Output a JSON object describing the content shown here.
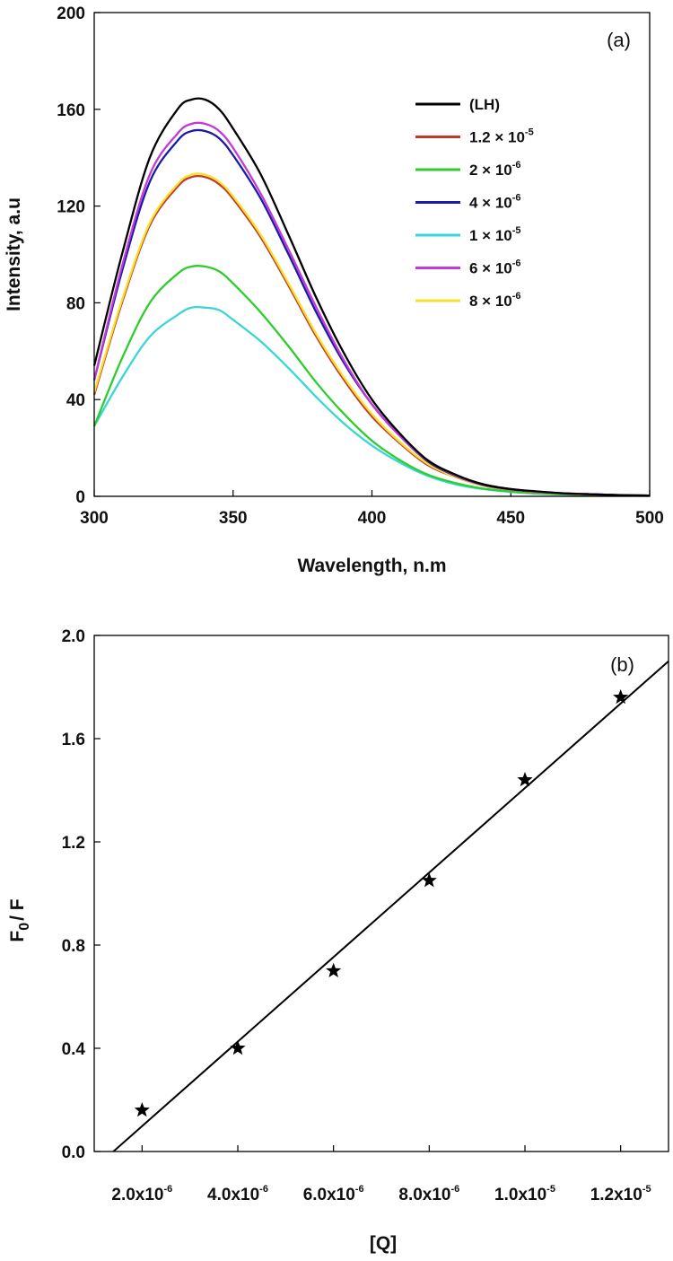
{
  "chart_data": [
    {
      "type": "line",
      "panel_label": "(a)",
      "xlabel": "Wavelength, n.m",
      "ylabel": "Intensity, a.u",
      "xlim": [
        300,
        500
      ],
      "ylim": [
        0,
        200
      ],
      "xticks": [
        300,
        350,
        400,
        450,
        500
      ],
      "xtick_labels": [
        "300",
        "350",
        "400",
        "450",
        "500"
      ],
      "yticks": [
        0,
        40,
        80,
        120,
        160,
        200
      ],
      "ytick_labels": [
        "0",
        "40",
        "80",
        "120",
        "160",
        "200"
      ],
      "legend_position": "top-right",
      "x": [
        300,
        310,
        320,
        330,
        335,
        340,
        345,
        350,
        360,
        370,
        380,
        390,
        400,
        410,
        420,
        430,
        440,
        450,
        460,
        470,
        480,
        490,
        500
      ],
      "series": [
        {
          "name": "(LH)",
          "legend_base": "(LH)",
          "legend_exp": "",
          "color": "#000000",
          "values": [
            54,
            100,
            140,
            160,
            164,
            164,
            160,
            152,
            133,
            108,
            82,
            59,
            40,
            26,
            15,
            9,
            5,
            3,
            2,
            1.2,
            0.8,
            0.5,
            0.3
          ]
        },
        {
          "name": "1.2 × 10-5",
          "legend_base": "1.2 × 10",
          "legend_exp": "-5",
          "color": "#c0392b",
          "values": [
            42,
            80,
            112,
            128,
            132,
            132,
            129,
            123,
            107,
            87,
            66,
            48,
            33,
            22,
            13,
            8,
            4.5,
            2.7,
            1.7,
            1.1,
            0.7,
            0.5,
            0.3
          ]
        },
        {
          "name": "2 × 10-6",
          "legend_base": "2 × 10",
          "legend_exp": "-6",
          "color": "#2ecc2e",
          "values": [
            29,
            57,
            80,
            92,
            95,
            95,
            93,
            88,
            76,
            62,
            47,
            34,
            23,
            15,
            9,
            5.5,
            3.2,
            2,
            1.2,
            0.8,
            0.5,
            0.3,
            0.2
          ]
        },
        {
          "name": "4 × 10-6",
          "legend_base": "4 × 10",
          "legend_exp": "-6",
          "color": "#1a1aa6",
          "values": [
            48,
            93,
            130,
            147,
            151,
            151,
            148,
            141,
            123,
            100,
            76,
            55,
            38,
            25,
            14.5,
            8.5,
            4.8,
            2.9,
            1.8,
            1.2,
            0.8,
            0.5,
            0.3
          ]
        },
        {
          "name": "1 × 10-5",
          "legend_base": "1 × 10",
          "legend_exp": "-5",
          "color": "#3ad6d6",
          "values": [
            29,
            49,
            66,
            75,
            78,
            78,
            77,
            73,
            64,
            53,
            41,
            30,
            21,
            14,
            8.5,
            5,
            3,
            1.8,
            1.1,
            0.7,
            0.5,
            0.3,
            0.2
          ]
        },
        {
          "name": "6 × 10-6",
          "legend_base": "6 × 10",
          "legend_exp": "-6",
          "color": "#c23ad6",
          "values": [
            48,
            95,
            133,
            150,
            154,
            154,
            151,
            144,
            125,
            102,
            78,
            56,
            38,
            25,
            14.8,
            8.7,
            5,
            3,
            1.8,
            1.2,
            0.8,
            0.5,
            0.3
          ]
        },
        {
          "name": "8 × 10-6",
          "legend_base": "8 × 10",
          "legend_exp": "-6",
          "color": "#f7e12a",
          "values": [
            43,
            81,
            113,
            129,
            133,
            133,
            130,
            124,
            108,
            88,
            67,
            49,
            34,
            22.5,
            13.5,
            8,
            4.6,
            2.8,
            1.7,
            1.1,
            0.7,
            0.5,
            0.3
          ]
        }
      ]
    },
    {
      "type": "scatter",
      "panel_label": "(b)",
      "xlabel": "[Q]",
      "ylabel": "F",
      "ylabel_sub": "0",
      "ylabel_tail": "/ F",
      "xlim": [
        1e-06,
        1.3e-05
      ],
      "ylim": [
        0.0,
        2.0
      ],
      "xticks": [
        2e-06,
        4e-06,
        6e-06,
        8e-06,
        1e-05,
        1.2e-05
      ],
      "xtick_bases": [
        "2.0x10",
        "4.0x10",
        "6.0x10",
        "8.0x10",
        "1.0x10",
        "1.2x10"
      ],
      "xtick_exps": [
        "-6",
        "-6",
        "-6",
        "-6",
        "-5",
        "-5"
      ],
      "yticks": [
        0.0,
        0.4,
        0.8,
        1.2,
        1.6,
        2.0
      ],
      "ytick_labels": [
        "0.0",
        "0.4",
        "0.8",
        "1.2",
        "1.6",
        "2.0"
      ],
      "marker": "star",
      "x": [
        2e-06,
        4e-06,
        6e-06,
        8e-06,
        1e-05,
        1.2e-05
      ],
      "values": [
        0.16,
        0.4,
        0.7,
        1.05,
        1.44,
        1.76
      ],
      "fit_line": {
        "x": [
          1.4e-06,
          1.3e-05
        ],
        "y": [
          0.0,
          1.9
        ]
      }
    }
  ]
}
